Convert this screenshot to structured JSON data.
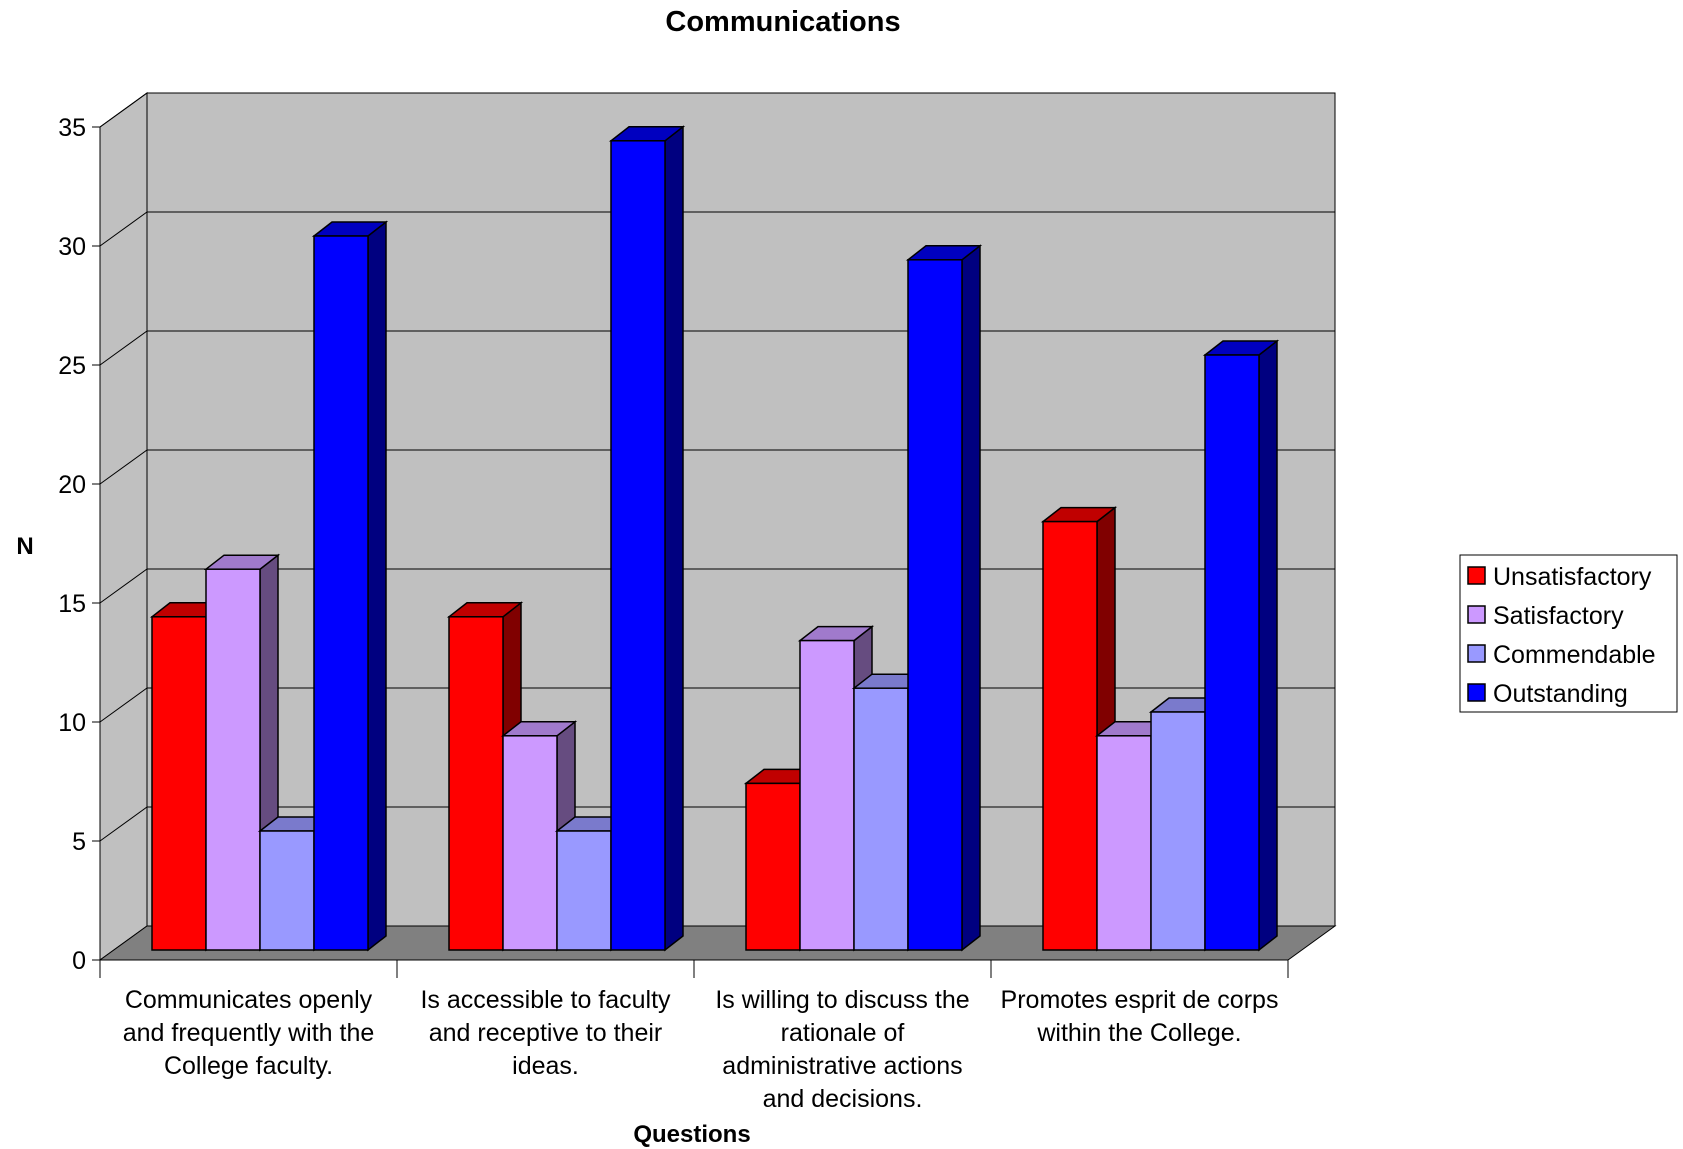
{
  "chart_data": {
    "type": "bar",
    "title": "Communications",
    "xlabel": "Questions",
    "ylabel": "N",
    "ylim": [
      0,
      35
    ],
    "yticks": [
      "0",
      "5",
      "10",
      "15",
      "20",
      "25",
      "30",
      "35"
    ],
    "grid": true,
    "legend_position": "right",
    "categories": [
      [
        "Communicates openly",
        "and frequently with the",
        "College faculty."
      ],
      [
        "Is accessible to faculty",
        "and receptive to their",
        "ideas."
      ],
      [
        "Is willing to discuss the",
        "rationale of",
        "administrative actions",
        "and decisions."
      ],
      [
        "Promotes esprit de corps",
        "within the College."
      ]
    ],
    "series": [
      {
        "name": "Unsatisfactory",
        "values": [
          14,
          14,
          7,
          18
        ],
        "color": "#ff0000",
        "side_color": "#800000",
        "top_color": "#c00000"
      },
      {
        "name": "Satisfactory",
        "values": [
          16,
          9,
          13,
          9
        ],
        "color": "#cc99ff",
        "side_color": "#664c80",
        "top_color": "#a07acc"
      },
      {
        "name": "Commendable",
        "values": [
          5,
          5,
          11,
          10
        ],
        "color": "#9999ff",
        "side_color": "#4c4c80",
        "top_color": "#7a7acc"
      },
      {
        "name": "Outstanding",
        "values": [
          30,
          34,
          29,
          25
        ],
        "color": "#0000ff",
        "side_color": "#000080",
        "top_color": "#0000c0"
      }
    ]
  }
}
